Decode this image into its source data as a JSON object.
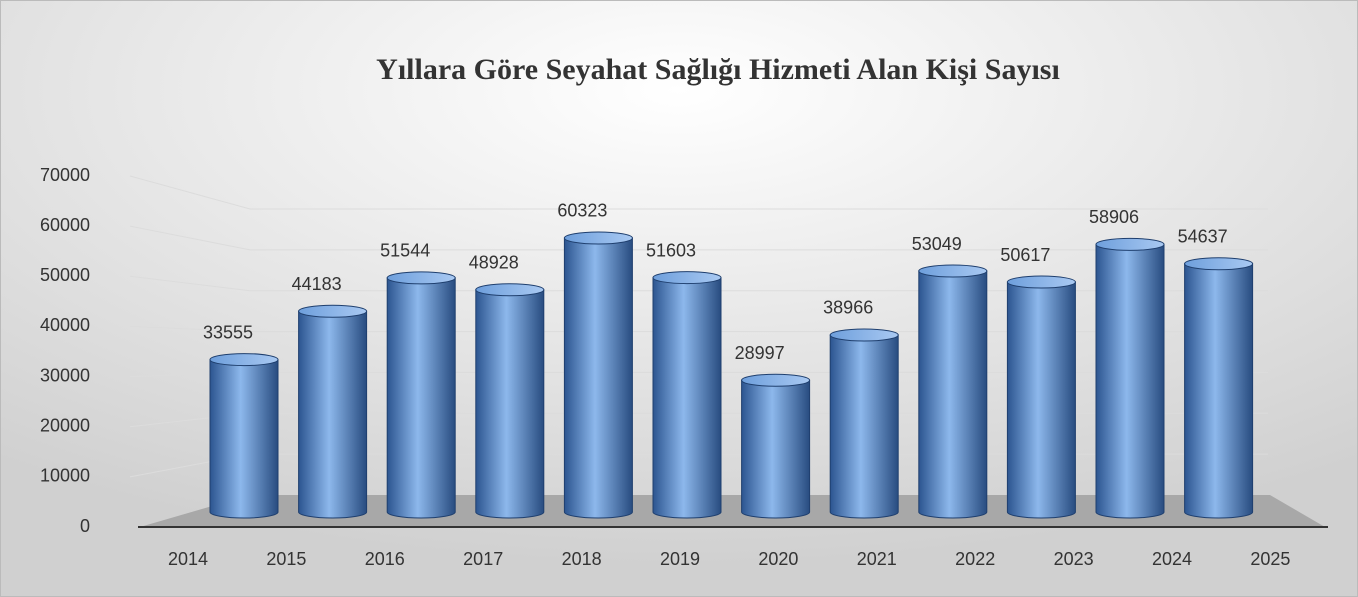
{
  "chart_data": {
    "type": "bar",
    "title": "Yıllara Göre Seyahat Sağlığı Hizmeti Alan Kişi Sayısı",
    "categories": [
      "2014",
      "2015",
      "2016",
      "2017",
      "2018",
      "2019",
      "2020",
      "2021",
      "2022",
      "2023",
      "2024",
      "2025"
    ],
    "values": [
      33555,
      44183,
      51544,
      48928,
      60323,
      51603,
      28997,
      38966,
      53049,
      50617,
      58906,
      54637
    ],
    "color": "#5b8fd6",
    "ylim": [
      0,
      70000
    ],
    "yticks": [
      0,
      10000,
      20000,
      30000,
      40000,
      50000,
      60000,
      70000
    ],
    "grid": true
  }
}
